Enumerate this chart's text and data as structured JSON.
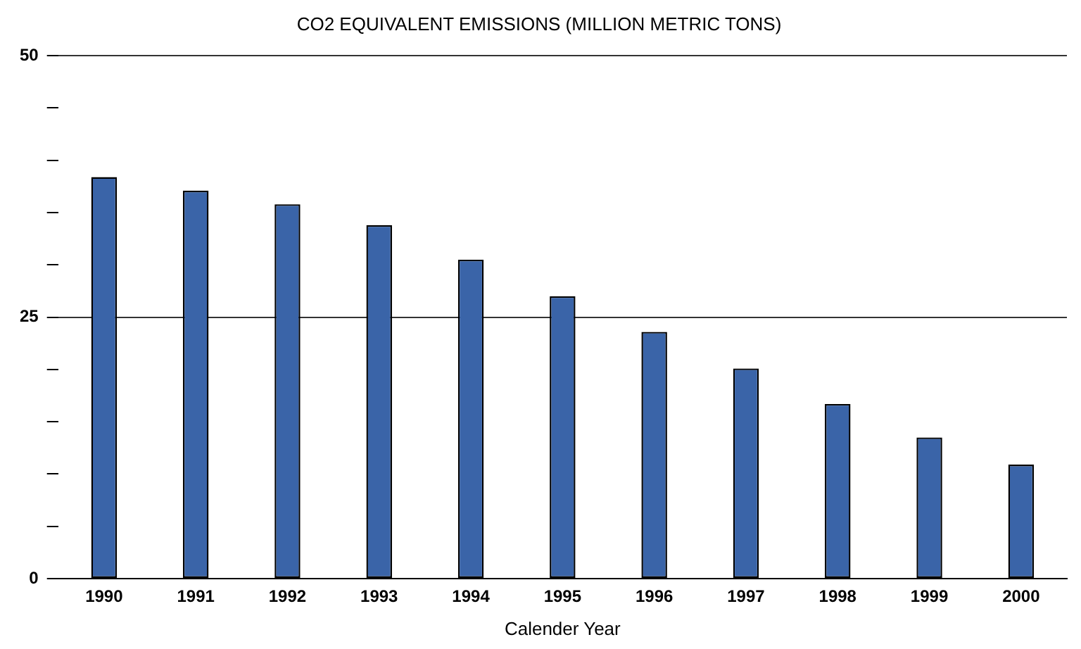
{
  "chart_data": {
    "type": "bar",
    "title": "CO2 EQUIVALENT EMISSIONS (MILLION METRIC TONS)",
    "xlabel": "Calender Year",
    "categories": [
      "1990",
      "1991",
      "1992",
      "1993",
      "1994",
      "1995",
      "1996",
      "1997",
      "1998",
      "1999",
      "2000"
    ],
    "values": [
      38.4,
      37.1,
      35.8,
      33.8,
      30.5,
      27.0,
      23.6,
      20.1,
      16.7,
      13.5,
      10.9
    ],
    "color": "#3a64a8",
    "ylim": [
      0,
      50
    ],
    "yticks": [
      0,
      {
        "value": 5,
        "label": null
      },
      {
        "value": 10,
        "label": null
      },
      {
        "value": 15,
        "label": null
      },
      {
        "value": 20,
        "label": null
      },
      25,
      {
        "value": 30,
        "label": null
      },
      {
        "value": 35,
        "label": null
      },
      {
        "value": 40,
        "label": null
      },
      {
        "value": 45,
        "label": null
      },
      50
    ],
    "grid": "y"
  }
}
